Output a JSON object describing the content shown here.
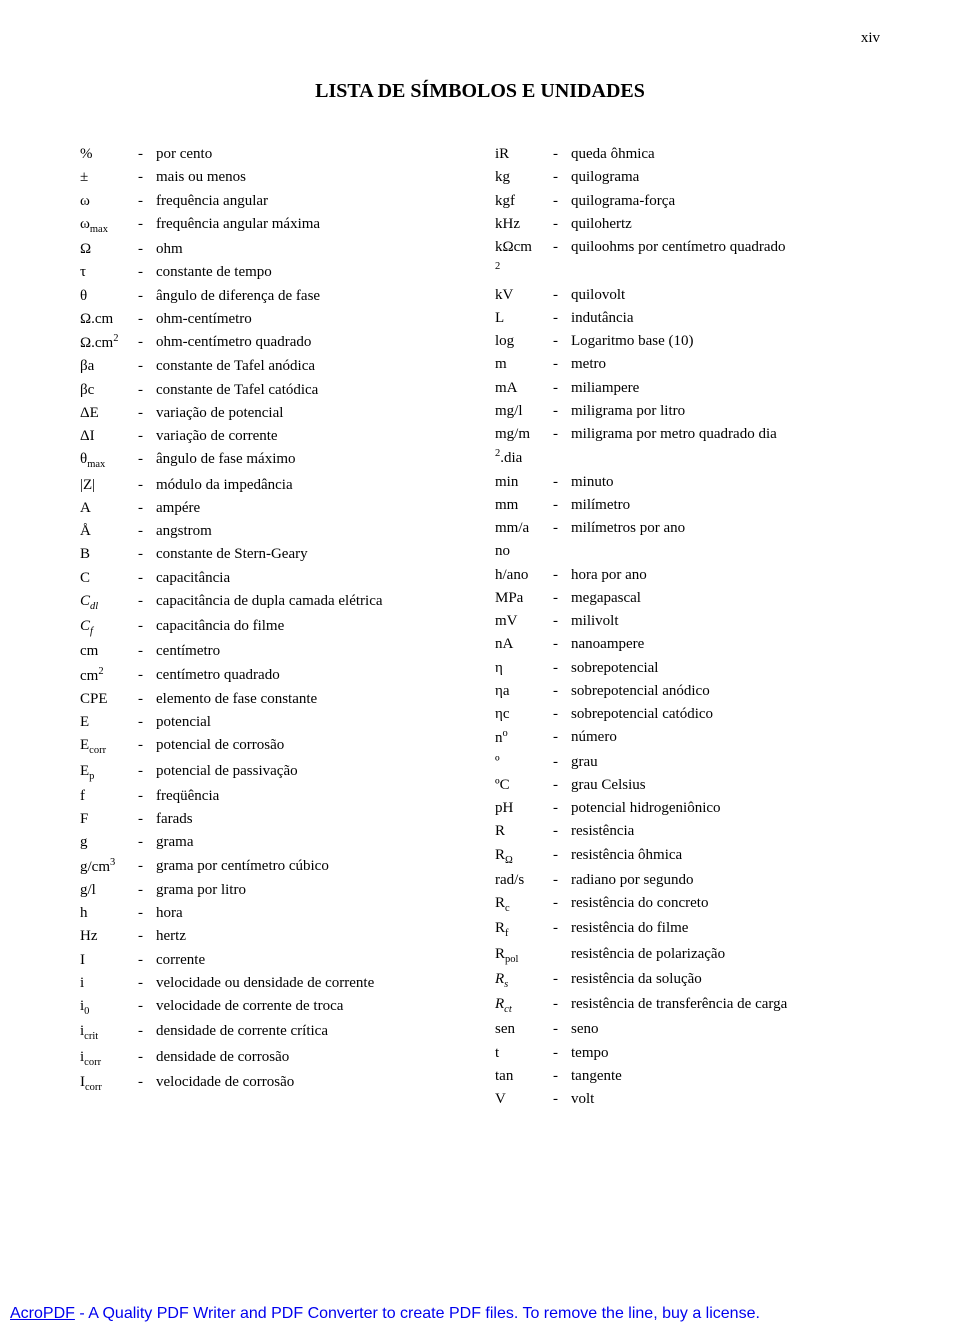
{
  "page_number": "xiv",
  "title": "LISTA DE SÍMBOLOS E UNIDADES",
  "dash": "-",
  "left": [
    {
      "sym": "%",
      "desc": "por cento"
    },
    {
      "sym": "±",
      "desc": "mais ou menos"
    },
    {
      "sym": "ω",
      "desc": "frequência angular"
    },
    {
      "sym": "ω<sub>max</sub>",
      "desc": "frequência angular máxima"
    },
    {
      "sym": "Ω",
      "desc": "ohm"
    },
    {
      "sym": "τ",
      "desc": "constante de tempo"
    },
    {
      "sym": "θ",
      "desc": "ângulo de diferença de fase"
    },
    {
      "sym": "Ω.cm",
      "desc": "ohm-centímetro"
    },
    {
      "sym": "Ω.cm<sup>2</sup>",
      "desc": "ohm-centímetro quadrado"
    },
    {
      "sym": "βa",
      "desc": "constante de Tafel anódica"
    },
    {
      "sym": "βc",
      "desc": "constante de Tafel catódica"
    },
    {
      "sym": "ΔE",
      "desc": "variação de potencial"
    },
    {
      "sym": "ΔI",
      "desc": "variação de corrente"
    },
    {
      "sym": "θ<sub>max</sub>",
      "desc": "ângulo de fase máximo"
    },
    {
      "sym": "|Z|",
      "desc": "módulo da impedância"
    },
    {
      "sym": "A",
      "desc": "ampére"
    },
    {
      "sym": "Å",
      "desc": "angstrom"
    },
    {
      "sym": "B",
      "desc": "constante de Stern-Geary"
    },
    {
      "sym": "C",
      "desc": "capacitância"
    },
    {
      "sym": "<span class=\"ital\">C<sub>dl</sub></span>",
      "desc": "capacitância de dupla camada elétrica"
    },
    {
      "sym": "<span class=\"ital\">C<sub>f</sub></span>",
      "desc": "capacitância do filme"
    },
    {
      "sym": "cm",
      "desc": "centímetro"
    },
    {
      "sym": "cm<sup>2</sup>",
      "desc": "centímetro quadrado"
    },
    {
      "sym": "CPE",
      "desc": "elemento de fase constante"
    },
    {
      "sym": "E",
      "desc": "potencial"
    },
    {
      "sym": "E<sub>corr</sub>",
      "desc": "potencial de corrosão"
    },
    {
      "sym": "E<sub>p</sub>",
      "desc": "potencial de passivação"
    },
    {
      "sym": "f",
      "desc": "freqüência"
    },
    {
      "sym": "F",
      "desc": "farads"
    },
    {
      "sym": "g",
      "desc": "grama"
    },
    {
      "sym": "g/cm<sup>3</sup>",
      "desc": "grama por centímetro cúbico"
    },
    {
      "sym": "g/l",
      "desc": "grama por litro"
    },
    {
      "sym": "h",
      "desc": "hora"
    },
    {
      "sym": "Hz",
      "desc": "hertz"
    },
    {
      "sym": "I",
      "desc": "corrente"
    },
    {
      "sym": "i",
      "desc": "velocidade ou densidade de corrente"
    },
    {
      "sym": "i<sub>0</sub>",
      "desc": "velocidade de corrente de troca"
    },
    {
      "sym": "i<sub>crit</sub>",
      "desc": "densidade de corrente crítica"
    },
    {
      "sym": "i<sub>corr</sub>",
      "desc": "densidade de corrosão"
    },
    {
      "sym": "I<sub>corr</sub>",
      "desc": "velocidade de corrosão"
    }
  ],
  "right": [
    {
      "sym": "iR",
      "desc": "queda ôhmica"
    },
    {
      "sym": "kg",
      "desc": "quilograma"
    },
    {
      "sym": "kgf",
      "desc": "quilograma-força"
    },
    {
      "sym": "kHz",
      "desc": "quilohertz"
    },
    {
      "sym": "kΩcm<br><sup>2</sup>",
      "desc": "quiloohms por centímetro quadrado"
    },
    {
      "sym": "kV",
      "desc": "quilovolt"
    },
    {
      "sym": "L",
      "desc": "indutância"
    },
    {
      "sym": "log",
      "desc": "Logaritmo base (10)"
    },
    {
      "sym": "m",
      "desc": "metro"
    },
    {
      "sym": "mA",
      "desc": "miliampere"
    },
    {
      "sym": "mg/l",
      "desc": "miligrama por litro"
    },
    {
      "sym": "mg/m<br><sup>2</sup>.dia",
      "desc": "miligrama por metro quadrado dia"
    },
    {
      "sym": "min",
      "desc": "minuto"
    },
    {
      "sym": "mm",
      "desc": "milímetro"
    },
    {
      "sym": "mm/a<br>no",
      "desc": "milímetros por ano"
    },
    {
      "sym": "h/ano",
      "desc": "hora por ano"
    },
    {
      "sym": "MPa",
      "desc": "megapascal"
    },
    {
      "sym": "mV",
      "desc": "milivolt"
    },
    {
      "sym": "nA",
      "desc": "nanoampere"
    },
    {
      "sym": "η",
      "desc": "sobrepotencial"
    },
    {
      "sym": "ηa",
      "desc": "sobrepotencial anódico"
    },
    {
      "sym": "ηc",
      "desc": "sobrepotencial catódico"
    },
    {
      "sym": "n<sup>o</sup>",
      "desc": "número"
    },
    {
      "sym": "º",
      "desc": "grau"
    },
    {
      "sym": "ºC",
      "desc": "grau Celsius"
    },
    {
      "sym": "pH",
      "desc": "potencial hidrogeniônico"
    },
    {
      "sym": "R",
      "desc": "resistência"
    },
    {
      "sym": "R<sub>Ω</sub>",
      "desc": "resistência ôhmica"
    },
    {
      "sym": "rad/s",
      "desc": "radiano por segundo"
    },
    {
      "sym": "R<sub>c</sub>",
      "desc": "resistência do concreto"
    },
    {
      "sym": "R<sub>f</sub>",
      "desc": "resistência do filme"
    },
    {
      "sym": "R<sub>pol</sub>",
      "desc": "resistência de polarização",
      "nodash": true
    },
    {
      "sym": "<span class=\"ital\">R<sub>s</sub></span>",
      "desc": "resistência da solução"
    },
    {
      "sym": "<span class=\"ital\">R<sub>ct</sub></span>",
      "desc": "resistência de transferência de carga"
    },
    {
      "sym": "sen",
      "desc": "seno"
    },
    {
      "sym": "t",
      "desc": "tempo"
    },
    {
      "sym": "tan",
      "desc": "tangente"
    },
    {
      "sym": "V",
      "desc": "volt"
    }
  ],
  "footer": {
    "link_text": "AcroPDF",
    "rest": " - A Quality PDF Writer and PDF Converter to create PDF files. To remove the line, buy a license."
  }
}
